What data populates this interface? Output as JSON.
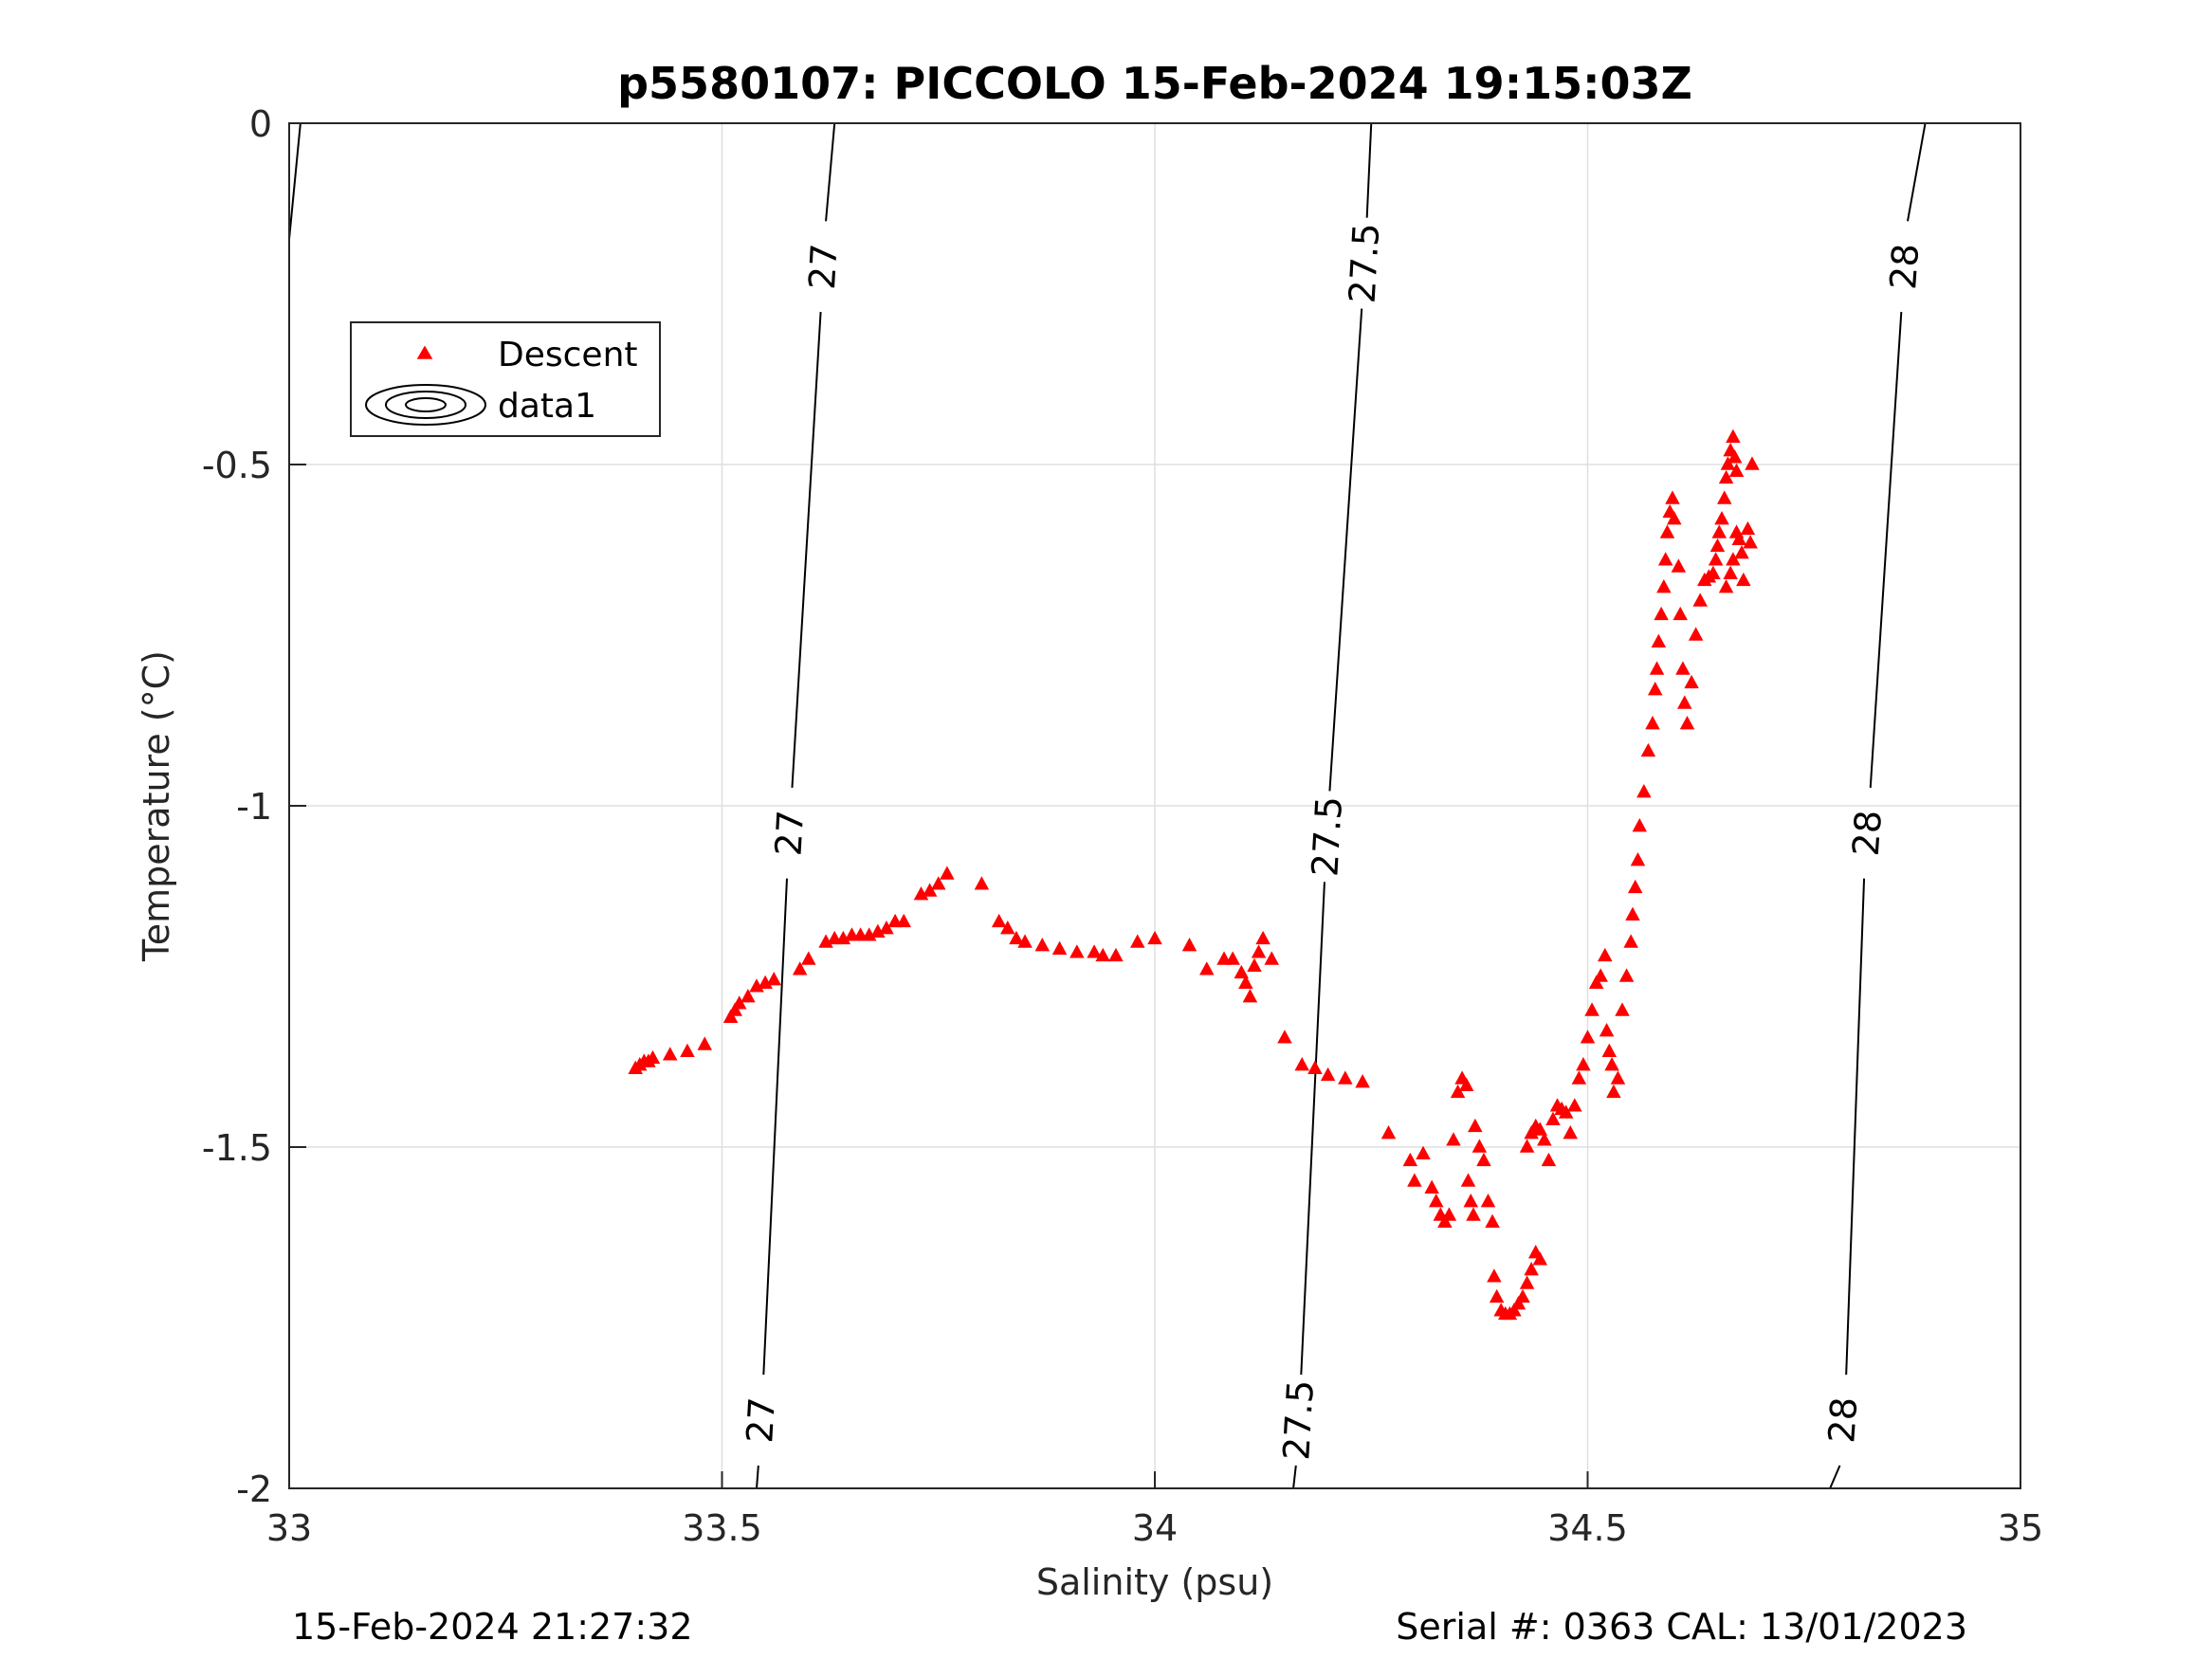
{
  "chart_data": {
    "type": "scatter",
    "title": "p5580107: PICCOLO 15-Feb-2024 19:15:03Z",
    "xlabel": "Salinity (psu)",
    "ylabel": "Temperature (°C)",
    "xlim": [
      33,
      35
    ],
    "ylim": [
      -2,
      0
    ],
    "xticks": [
      33,
      33.5,
      34,
      34.5,
      35
    ],
    "xtick_labels": [
      "33",
      "33.5",
      "34",
      "34.5",
      "35"
    ],
    "yticks": [
      0,
      -0.5,
      -1,
      -1.5,
      -2
    ],
    "ytick_labels": [
      "0",
      "-0.5",
      "-1",
      "-1.5",
      "-2"
    ],
    "grid": true,
    "legend": {
      "placement": "top-left",
      "entries": [
        {
          "label": "Descent",
          "marker": "triangle",
          "color": "#ff0000"
        },
        {
          "label": "data1",
          "marker": "contour",
          "color": "#000000"
        }
      ]
    },
    "contours": [
      {
        "level_label": "27",
        "top": [
          33.63,
          0
        ],
        "bottom": [
          33.54,
          -2
        ],
        "label_positions": [
          [
            33.617,
            -0.21
          ],
          [
            33.578,
            -1.04
          ],
          [
            33.545,
            -1.9
          ]
        ]
      },
      {
        "level_label": "27.5",
        "top": [
          34.25,
          0
        ],
        "bottom": [
          34.16,
          -2
        ],
        "label_positions": [
          [
            34.242,
            -0.205
          ],
          [
            34.199,
            -1.045
          ],
          [
            34.166,
            -1.9
          ]
        ]
      },
      {
        "level_label": "28",
        "top": [
          34.89,
          0
        ],
        "bottom": [
          34.78,
          -2
        ],
        "label_positions": [
          [
            34.866,
            -0.21
          ],
          [
            34.823,
            -1.04
          ],
          [
            34.795,
            -1.9
          ]
        ]
      }
    ],
    "series": [
      {
        "name": "Descent",
        "marker": "triangle",
        "color": "#ff0000",
        "points": [
          [
            33.4,
            -1.385
          ],
          [
            33.405,
            -1.38
          ],
          [
            33.41,
            -1.375
          ],
          [
            33.415,
            -1.375
          ],
          [
            33.42,
            -1.37
          ],
          [
            33.44,
            -1.365
          ],
          [
            33.46,
            -1.36
          ],
          [
            33.48,
            -1.35
          ],
          [
            33.51,
            -1.31
          ],
          [
            33.515,
            -1.3
          ],
          [
            33.52,
            -1.29
          ],
          [
            33.53,
            -1.28
          ],
          [
            33.54,
            -1.265
          ],
          [
            33.55,
            -1.26
          ],
          [
            33.56,
            -1.255
          ],
          [
            33.59,
            -1.24
          ],
          [
            33.6,
            -1.225
          ],
          [
            33.62,
            -1.2
          ],
          [
            33.63,
            -1.195
          ],
          [
            33.64,
            -1.195
          ],
          [
            33.65,
            -1.19
          ],
          [
            33.66,
            -1.19
          ],
          [
            33.67,
            -1.19
          ],
          [
            33.68,
            -1.185
          ],
          [
            33.69,
            -1.18
          ],
          [
            33.7,
            -1.17
          ],
          [
            33.71,
            -1.17
          ],
          [
            33.73,
            -1.13
          ],
          [
            33.74,
            -1.125
          ],
          [
            33.75,
            -1.115
          ],
          [
            33.76,
            -1.1
          ],
          [
            33.8,
            -1.115
          ],
          [
            33.82,
            -1.17
          ],
          [
            33.83,
            -1.18
          ],
          [
            33.84,
            -1.195
          ],
          [
            33.85,
            -1.2
          ],
          [
            33.87,
            -1.205
          ],
          [
            33.89,
            -1.21
          ],
          [
            33.91,
            -1.215
          ],
          [
            33.93,
            -1.215
          ],
          [
            33.94,
            -1.22
          ],
          [
            33.955,
            -1.22
          ],
          [
            33.98,
            -1.2
          ],
          [
            34.0,
            -1.195
          ],
          [
            34.04,
            -1.205
          ],
          [
            34.06,
            -1.24
          ],
          [
            34.08,
            -1.225
          ],
          [
            34.09,
            -1.225
          ],
          [
            34.1,
            -1.245
          ],
          [
            34.105,
            -1.26
          ],
          [
            34.11,
            -1.28
          ],
          [
            34.115,
            -1.235
          ],
          [
            34.12,
            -1.215
          ],
          [
            34.125,
            -1.195
          ],
          [
            34.135,
            -1.225
          ],
          [
            34.15,
            -1.34
          ],
          [
            34.17,
            -1.38
          ],
          [
            34.185,
            -1.385
          ],
          [
            34.2,
            -1.395
          ],
          [
            34.22,
            -1.4
          ],
          [
            34.24,
            -1.405
          ],
          [
            34.27,
            -1.48
          ],
          [
            34.295,
            -1.52
          ],
          [
            34.3,
            -1.55
          ],
          [
            34.31,
            -1.51
          ],
          [
            34.32,
            -1.56
          ],
          [
            34.325,
            -1.58
          ],
          [
            34.33,
            -1.6
          ],
          [
            34.335,
            -1.61
          ],
          [
            34.34,
            -1.6
          ],
          [
            34.345,
            -1.49
          ],
          [
            34.35,
            -1.42
          ],
          [
            34.355,
            -1.4
          ],
          [
            34.36,
            -1.41
          ],
          [
            34.362,
            -1.55
          ],
          [
            34.365,
            -1.58
          ],
          [
            34.368,
            -1.6
          ],
          [
            34.37,
            -1.47
          ],
          [
            34.375,
            -1.5
          ],
          [
            34.38,
            -1.52
          ],
          [
            34.385,
            -1.58
          ],
          [
            34.39,
            -1.61
          ],
          [
            34.392,
            -1.69
          ],
          [
            34.395,
            -1.72
          ],
          [
            34.4,
            -1.74
          ],
          [
            34.405,
            -1.745
          ],
          [
            34.41,
            -1.745
          ],
          [
            34.415,
            -1.74
          ],
          [
            34.42,
            -1.73
          ],
          [
            34.425,
            -1.72
          ],
          [
            34.43,
            -1.7
          ],
          [
            34.435,
            -1.68
          ],
          [
            34.44,
            -1.655
          ],
          [
            34.445,
            -1.665
          ],
          [
            34.43,
            -1.5
          ],
          [
            34.435,
            -1.48
          ],
          [
            34.44,
            -1.47
          ],
          [
            34.445,
            -1.475
          ],
          [
            34.45,
            -1.49
          ],
          [
            34.455,
            -1.52
          ],
          [
            34.46,
            -1.46
          ],
          [
            34.465,
            -1.44
          ],
          [
            34.47,
            -1.445
          ],
          [
            34.475,
            -1.45
          ],
          [
            34.48,
            -1.48
          ],
          [
            34.485,
            -1.44
          ],
          [
            34.49,
            -1.4
          ],
          [
            34.495,
            -1.38
          ],
          [
            34.5,
            -1.34
          ],
          [
            34.505,
            -1.3
          ],
          [
            34.51,
            -1.26
          ],
          [
            34.515,
            -1.25
          ],
          [
            34.52,
            -1.22
          ],
          [
            34.522,
            -1.33
          ],
          [
            34.525,
            -1.36
          ],
          [
            34.528,
            -1.38
          ],
          [
            34.53,
            -1.42
          ],
          [
            34.535,
            -1.4
          ],
          [
            34.54,
            -1.3
          ],
          [
            34.545,
            -1.25
          ],
          [
            34.55,
            -1.2
          ],
          [
            34.552,
            -1.16
          ],
          [
            34.555,
            -1.12
          ],
          [
            34.558,
            -1.08
          ],
          [
            34.56,
            -1.03
          ],
          [
            34.565,
            -0.98
          ],
          [
            34.57,
            -0.92
          ],
          [
            34.575,
            -0.88
          ],
          [
            34.578,
            -0.83
          ],
          [
            34.58,
            -0.8
          ],
          [
            34.582,
            -0.76
          ],
          [
            34.585,
            -0.72
          ],
          [
            34.588,
            -0.68
          ],
          [
            34.59,
            -0.64
          ],
          [
            34.592,
            -0.6
          ],
          [
            34.595,
            -0.57
          ],
          [
            34.598,
            -0.55
          ],
          [
            34.6,
            -0.58
          ],
          [
            34.605,
            -0.65
          ],
          [
            34.607,
            -0.72
          ],
          [
            34.61,
            -0.8
          ],
          [
            34.612,
            -0.85
          ],
          [
            34.615,
            -0.88
          ],
          [
            34.62,
            -0.82
          ],
          [
            34.625,
            -0.75
          ],
          [
            34.63,
            -0.7
          ],
          [
            34.635,
            -0.67
          ],
          [
            34.64,
            -0.665
          ],
          [
            34.645,
            -0.66
          ],
          [
            34.648,
            -0.64
          ],
          [
            34.65,
            -0.62
          ],
          [
            34.652,
            -0.6
          ],
          [
            34.655,
            -0.58
          ],
          [
            34.658,
            -0.55
          ],
          [
            34.66,
            -0.52
          ],
          [
            34.662,
            -0.5
          ],
          [
            34.665,
            -0.48
          ],
          [
            34.668,
            -0.46
          ],
          [
            34.67,
            -0.49
          ],
          [
            34.672,
            -0.51
          ],
          [
            34.672,
            -0.6
          ],
          [
            34.668,
            -0.64
          ],
          [
            34.665,
            -0.66
          ],
          [
            34.66,
            -0.68
          ],
          [
            34.675,
            -0.61
          ],
          [
            34.678,
            -0.63
          ],
          [
            34.68,
            -0.67
          ],
          [
            34.685,
            -0.595
          ],
          [
            34.688,
            -0.615
          ],
          [
            34.69,
            -0.5
          ]
        ]
      }
    ]
  },
  "footer": {
    "left": "15-Feb-2024 21:27:32",
    "right": "Serial #: 0363  CAL: 13/01/2023"
  }
}
